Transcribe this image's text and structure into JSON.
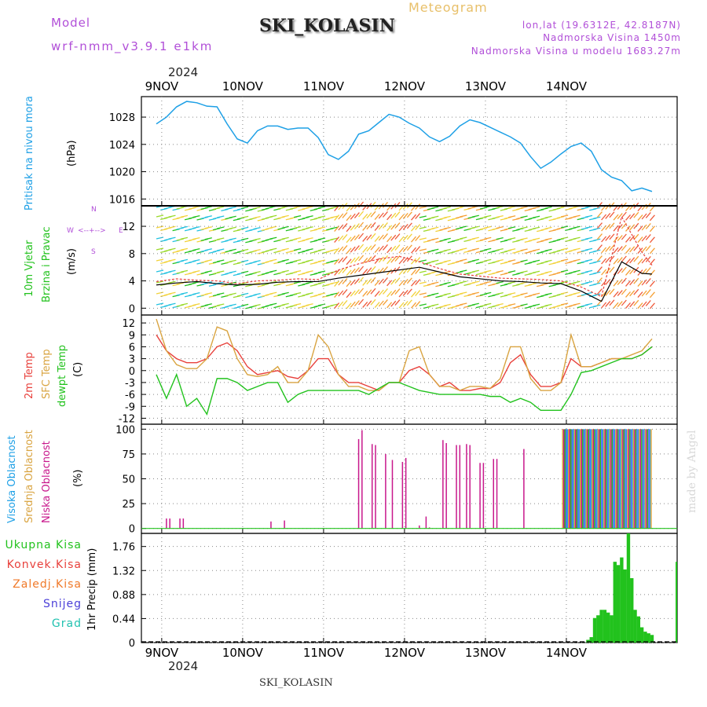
{
  "header": {
    "model_label": "Model",
    "model_name": "wrf-nmm_v3.9.1 e1km",
    "station": "SKI_KOLASIN",
    "product": "Meteogram",
    "lonlat": "lon,lat (19.6312E, 42.8187N)",
    "elevation": "Nadmorska Visina 1450m",
    "model_elevation": "Nadmorska Visina u modelu 1683.27m",
    "year_top": "2024",
    "year_bottom": "2024",
    "footer_station": "SKI_KOLASIN",
    "watermark": "made by Angel"
  },
  "colors": {
    "pressure": "#1ea0e6",
    "temp2m": "#e8413c",
    "sfc": "#d9a441",
    "dewpt": "#22c21d",
    "high_cloud": "#1ea0e6",
    "mid_cloud": "#d9a441",
    "low_cloud": "#c8188c",
    "total_precip": "#22c21d",
    "wind_speed": "#000000",
    "gust": "#e8413c",
    "model_purple": "#b14fd8"
  },
  "panels": {
    "pressure": {
      "line1": "Pritisak na nivou mora",
      "unit": "(hPa)"
    },
    "wind": {
      "line1": "10m Vjetar",
      "line2": "Brzina i Pravac",
      "unit": "(m/s)",
      "compass_n": "N",
      "compass_s": "S",
      "compass_w": "W",
      "compass_e": "E"
    },
    "temp": {
      "line1": "2m Temp",
      "line2": "SFC Temp",
      "line3": "dewpt Temp",
      "unit": "(C)"
    },
    "cloud": {
      "line1": "Visoka Oblacnost",
      "line2": "Srednja Oblacnost",
      "line3": "Niska Oblacnost",
      "unit": "(%)"
    },
    "precip": {
      "legend": [
        "Ukupna Kisa",
        "Konvek.Kisa",
        "Zaledj.Kisa",
        "Snijeg",
        "Grad"
      ],
      "unit": "1hr Precip (mm)"
    }
  },
  "chart_data": [
    {
      "type": "line",
      "name": "pressure",
      "x_labels": [
        "9NOV",
        "10NOV",
        "11NOV",
        "12NOV",
        "13NOV",
        "14NOV"
      ],
      "x": [
        0,
        3,
        6,
        9,
        12,
        15,
        18,
        21,
        24,
        27,
        30,
        33,
        36,
        39,
        42,
        45,
        48,
        51,
        54,
        57,
        60,
        63,
        66,
        69,
        72,
        75,
        78,
        81,
        84,
        87,
        90,
        93,
        96,
        99,
        102,
        105,
        108,
        111,
        114,
        117,
        120,
        123,
        126,
        129,
        132,
        135,
        138,
        141,
        144,
        147
      ],
      "values": [
        1027,
        1028,
        1029.5,
        1030.3,
        1030.1,
        1029.6,
        1029.5,
        1027,
        1024.8,
        1024.2,
        1026,
        1026.7,
        1026.7,
        1026.2,
        1026.4,
        1026.4,
        1025,
        1022.5,
        1021.8,
        1023,
        1025.5,
        1026,
        1027.2,
        1028.4,
        1028,
        1027.1,
        1026.4,
        1025.1,
        1024.4,
        1025.2,
        1026.7,
        1027.6,
        1027.2,
        1026.5,
        1025.8,
        1025.1,
        1024.2,
        1022.2,
        1020.5,
        1021.4,
        1022.6,
        1023.7,
        1024.2,
        1023,
        1020.3,
        1019.2,
        1018.7,
        1017.2,
        1017.6,
        1017.1
      ],
      "x_ticks": [
        0,
        24,
        48,
        72,
        96,
        120,
        144
      ],
      "y_ticks": [
        1016,
        1020,
        1024,
        1028
      ],
      "ylim": [
        1015,
        1031
      ]
    },
    {
      "type": "line",
      "name": "wind",
      "x": [
        0,
        6,
        12,
        18,
        24,
        30,
        36,
        42,
        48,
        54,
        60,
        66,
        72,
        78,
        84,
        90,
        96,
        102,
        108,
        114,
        120,
        126,
        132,
        138,
        144,
        147
      ],
      "series": [
        {
          "name": "speed",
          "values": [
            3.4,
            3.7,
            3.9,
            3.6,
            3.4,
            3.5,
            3.8,
            3.9,
            3.9,
            4.4,
            4.8,
            5.2,
            5.6,
            6.0,
            5.3,
            4.6,
            4.3,
            4.0,
            3.9,
            3.7,
            3.6,
            2.5,
            1.0,
            6.8,
            5.1,
            5.0
          ]
        },
        {
          "name": "gust",
          "values": [
            3.9,
            4.3,
            4.1,
            4.0,
            3.6,
            4.0,
            4.1,
            4.3,
            4.2,
            5.6,
            6.5,
            7.2,
            7.6,
            6.8,
            5.8,
            5.0,
            4.7,
            4.4,
            4.3,
            4.2,
            4.0,
            3.1,
            1.7,
            13.4,
            8.2,
            6.3
          ]
        }
      ],
      "y_ticks": [
        0,
        4,
        8,
        12
      ],
      "ylim": [
        -1,
        15
      ]
    },
    {
      "type": "line",
      "name": "temperature",
      "x": [
        0,
        3,
        6,
        9,
        12,
        15,
        18,
        21,
        24,
        27,
        30,
        33,
        36,
        39,
        42,
        45,
        48,
        51,
        54,
        57,
        60,
        63,
        66,
        69,
        72,
        75,
        78,
        81,
        84,
        87,
        90,
        93,
        96,
        99,
        102,
        105,
        108,
        111,
        114,
        117,
        120,
        123,
        126,
        129,
        132,
        135,
        138,
        141,
        144,
        147
      ],
      "series": [
        {
          "name": "t2m",
          "values": [
            9,
            5,
            3,
            2,
            2,
            3,
            6,
            7,
            5,
            1,
            -1,
            -0.5,
            0,
            -1.5,
            -2,
            0,
            3,
            3,
            -1,
            -3,
            -3,
            -4,
            -5,
            -3,
            -3,
            0,
            1,
            -1,
            -4,
            -3,
            -5,
            -5,
            -4.5,
            -4.5,
            -3,
            2,
            4,
            -1,
            -4,
            -4,
            -3,
            3,
            1,
            1,
            2,
            3,
            3,
            3,
            4,
            6
          ]
        },
        {
          "name": "sfc",
          "values": [
            13,
            5,
            1.5,
            0.5,
            0.5,
            3,
            11,
            10,
            3,
            -1,
            -1.5,
            -1,
            1,
            -3,
            -3,
            0,
            9,
            6,
            -1,
            -4,
            -4,
            -5,
            -5,
            -3,
            -3,
            5,
            6,
            -1,
            -4,
            -4,
            -5,
            -4,
            -4,
            -4.5,
            -2,
            6,
            6,
            -2,
            -5,
            -5,
            -3,
            9,
            1,
            1,
            2,
            3,
            3,
            4,
            5,
            8
          ]
        },
        {
          "name": "dewpt",
          "values": [
            -1,
            -7,
            -1,
            -9,
            -7,
            -11,
            -2,
            -2,
            -3,
            -5,
            -4,
            -3,
            -3,
            -8,
            -6,
            -5,
            -5,
            -5,
            -5,
            -5,
            -5,
            -6,
            -4.5,
            -3,
            -3,
            -4,
            -5,
            -5.5,
            -6,
            -6,
            -6,
            -6,
            -6,
            -6.5,
            -6.5,
            -8,
            -7,
            -8,
            -10,
            -10,
            -10,
            -6,
            -0.5,
            0,
            1,
            2,
            3,
            3,
            4,
            6
          ]
        }
      ],
      "y_ticks": [
        -12,
        -9,
        -6,
        -3,
        0,
        3,
        6,
        9,
        12
      ],
      "ylim": [
        -13.5,
        14
      ]
    },
    {
      "type": "bar",
      "name": "cloud",
      "low_cloud_bars": [
        {
          "x": 3,
          "v": 10
        },
        {
          "x": 4,
          "v": 10
        },
        {
          "x": 7,
          "v": 10
        },
        {
          "x": 8,
          "v": 10
        },
        {
          "x": 34,
          "v": 7
        },
        {
          "x": 38,
          "v": 8
        },
        {
          "x": 60,
          "v": 90
        },
        {
          "x": 61,
          "v": 99
        },
        {
          "x": 64,
          "v": 85
        },
        {
          "x": 65,
          "v": 84
        },
        {
          "x": 68,
          "v": 75
        },
        {
          "x": 70,
          "v": 69
        },
        {
          "x": 73,
          "v": 67
        },
        {
          "x": 74,
          "v": 71
        },
        {
          "x": 78,
          "v": 3
        },
        {
          "x": 80,
          "v": 12
        },
        {
          "x": 81,
          "v": 1
        },
        {
          "x": 85,
          "v": 89
        },
        {
          "x": 86,
          "v": 86
        },
        {
          "x": 89,
          "v": 84
        },
        {
          "x": 90,
          "v": 84
        },
        {
          "x": 92,
          "v": 85
        },
        {
          "x": 93,
          "v": 84
        },
        {
          "x": 96,
          "v": 66
        },
        {
          "x": 97,
          "v": 66
        },
        {
          "x": 100,
          "v": 70
        },
        {
          "x": 101,
          "v": 70
        },
        {
          "x": 109,
          "v": 80
        }
      ],
      "y_ticks": [
        0,
        25,
        50,
        75,
        100
      ],
      "ylim": [
        -5,
        105
      ]
    },
    {
      "type": "bar",
      "name": "precipitation",
      "x": [
        128,
        129,
        130,
        131,
        132,
        133,
        134,
        135,
        136,
        137,
        138,
        139,
        140,
        141,
        142,
        143,
        144,
        145,
        146,
        147
      ],
      "values": [
        0.05,
        0.1,
        0.45,
        0.5,
        0.6,
        0.6,
        0.55,
        0.5,
        1.48,
        1.42,
        1.56,
        1.34,
        2.0,
        1.18,
        0.6,
        0.48,
        0.28,
        0.2,
        0.17,
        0.14
      ],
      "tail_values": [
        0.07,
        0.03,
        0.02,
        1.48
      ],
      "y_ticks": [
        0,
        0.44,
        0.88,
        1.32,
        1.76
      ],
      "ylim": [
        0,
        2.0
      ]
    }
  ]
}
